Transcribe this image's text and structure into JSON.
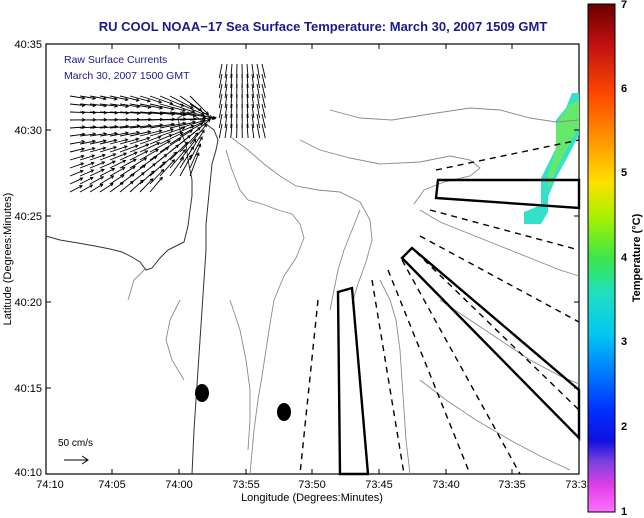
{
  "title": "RU COOL  NOAA−17  Sea Surface Temperature:  March 30, 2007 1509 GMT",
  "overlay": {
    "line1": "Raw Surface Currents",
    "line2": "March 30, 2007 1500 GMT"
  },
  "axes": {
    "xlabel": "Longitude (Degrees:Minutes)",
    "ylabel": "Latitude (Degrees:Minutes)",
    "xticks": [
      "74:10",
      "74:05",
      "74:00",
      "73:55",
      "73:50",
      "73:45",
      "73:40",
      "73:35",
      "73:3"
    ],
    "yticks": [
      "40:35",
      "40:30",
      "40:25",
      "40:20",
      "40:15",
      "40:10"
    ]
  },
  "scale": {
    "label": "50 cm/s"
  },
  "colorbar": {
    "label": "Temperature (°C)",
    "ticks": [
      "7",
      "6",
      "5",
      "4",
      "3",
      "2",
      "1"
    ],
    "range": [
      1,
      7
    ]
  },
  "colors": {
    "title": "#1a1a8c",
    "overlay": "#1a1a8c",
    "sst_patch": "#33e0c8",
    "sst_patch_2": "#66e86a"
  }
}
